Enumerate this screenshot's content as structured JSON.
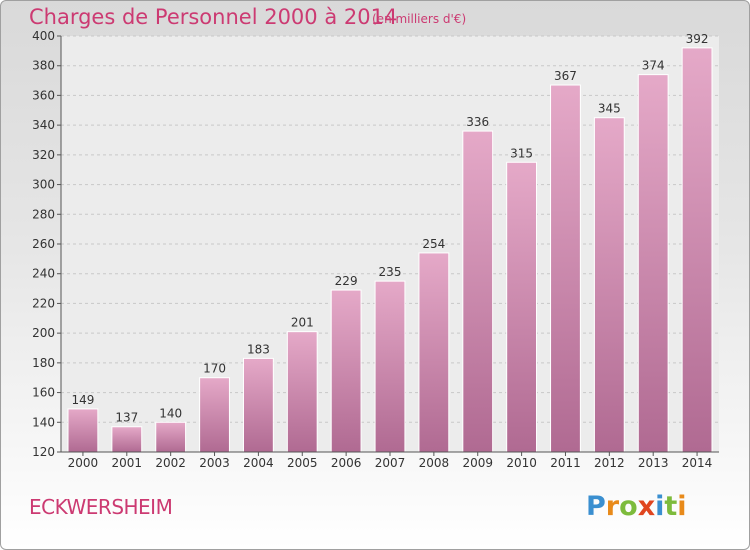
{
  "chart_data": {
    "type": "bar",
    "title": "Charges de Personnel 2000 à 2014",
    "subtitle": "(en milliers d'€)",
    "categories": [
      "2000",
      "2001",
      "2002",
      "2003",
      "2004",
      "2005",
      "2006",
      "2007",
      "2008",
      "2009",
      "2010",
      "2011",
      "2012",
      "2013",
      "2014"
    ],
    "values": [
      149,
      137,
      140,
      170,
      183,
      201,
      229,
      235,
      254,
      336,
      315,
      367,
      345,
      374,
      392
    ],
    "ylim": [
      120,
      400
    ],
    "yticks": [
      120,
      140,
      160,
      180,
      200,
      220,
      240,
      260,
      280,
      300,
      320,
      340,
      360,
      380,
      400
    ],
    "grid": true,
    "bar_color": "#d98fb5"
  },
  "footer": {
    "commune": "ECKWERSHEIM"
  },
  "logo": {
    "letters": [
      "P",
      "r",
      "o",
      "x",
      "i",
      "t",
      "i"
    ],
    "colors": [
      "#3a8fd0",
      "#e88a1a",
      "#7dbb3c",
      "#e0451f",
      "#3a8fd0",
      "#7dbb3c",
      "#e88a1a"
    ]
  }
}
